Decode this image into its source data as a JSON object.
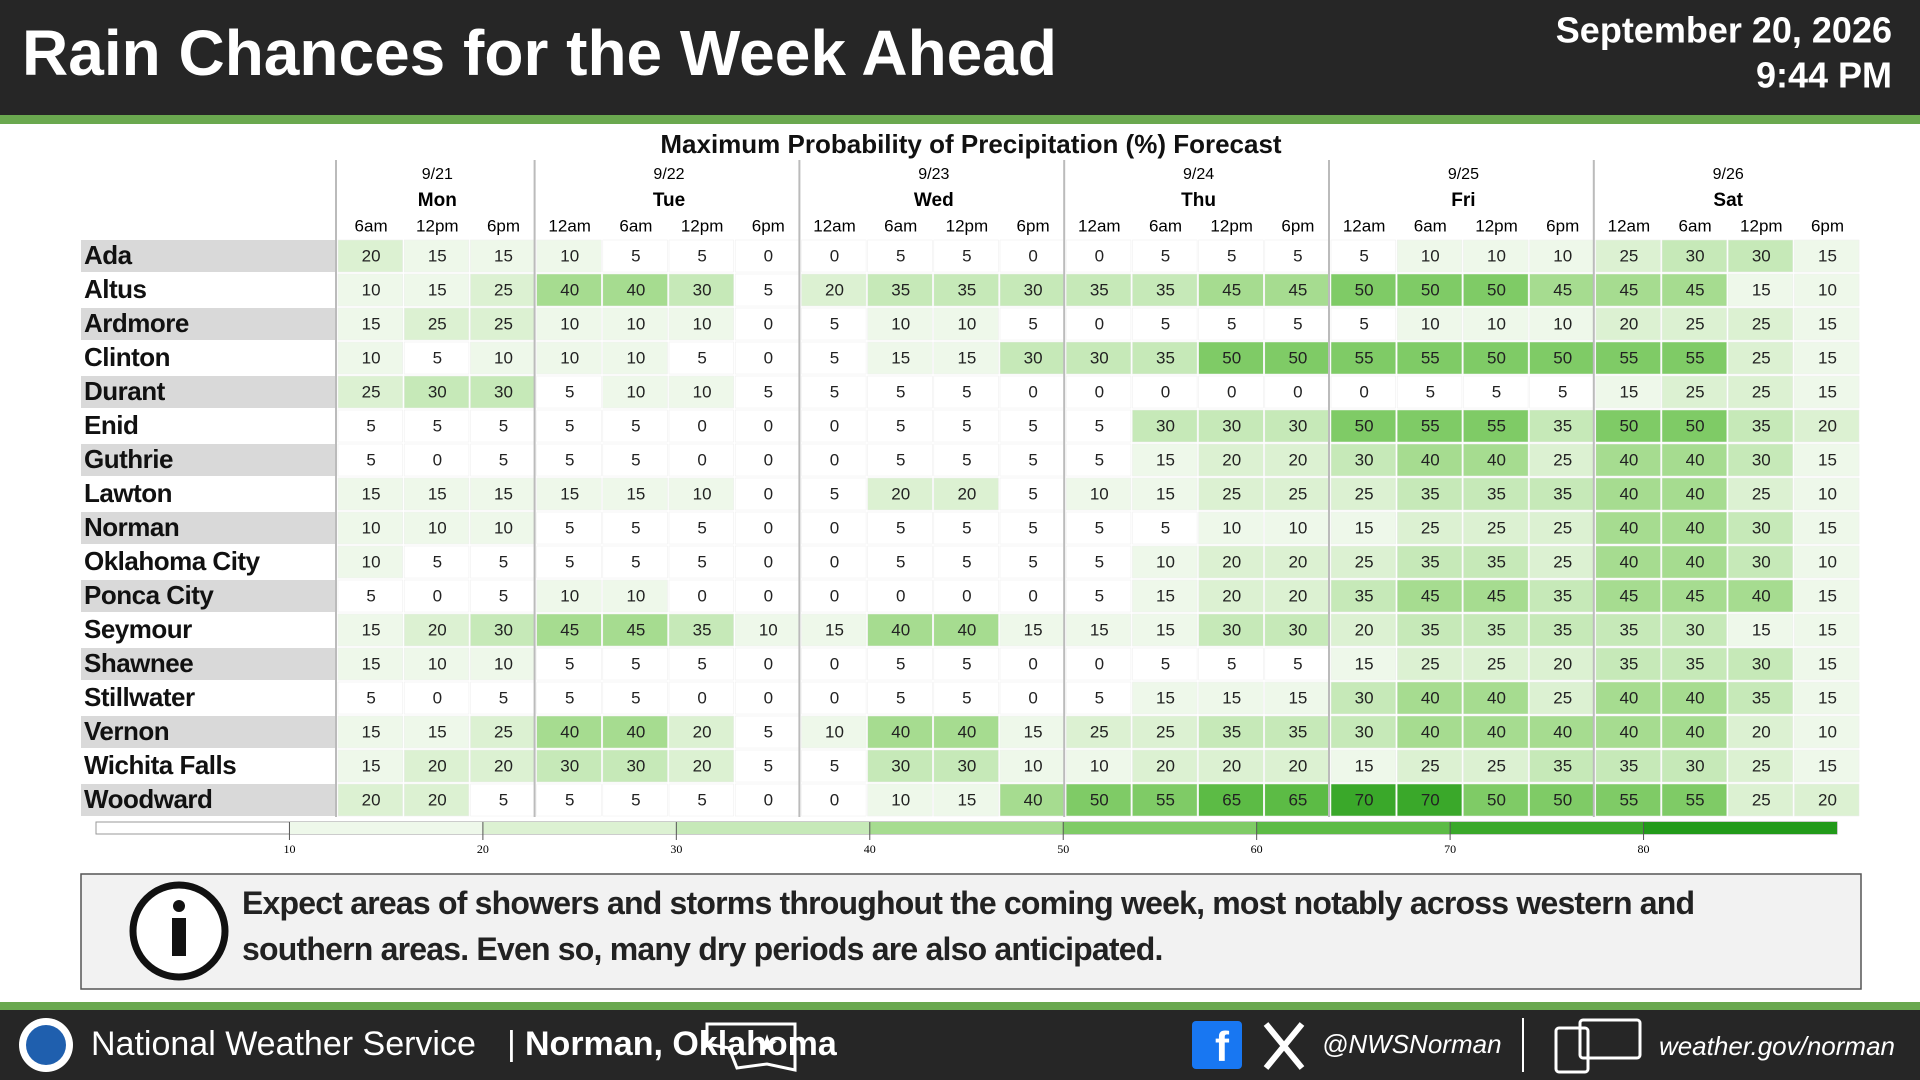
{
  "header": {
    "title": "Rain Chances for the Week Ahead",
    "date": "September 20, 2026",
    "time": "9:44 PM"
  },
  "table": {
    "title": "Maximum Probability of Precipitation (%) Forecast",
    "days": [
      {
        "date": "9/21",
        "weekday": "Mon",
        "times": [
          "6am",
          "12pm",
          "6pm"
        ]
      },
      {
        "date": "9/22",
        "weekday": "Tue",
        "times": [
          "12am",
          "6am",
          "12pm",
          "6pm"
        ]
      },
      {
        "date": "9/23",
        "weekday": "Wed",
        "times": [
          "12am",
          "6am",
          "12pm",
          "6pm"
        ]
      },
      {
        "date": "9/24",
        "weekday": "Thu",
        "times": [
          "12am",
          "6am",
          "12pm",
          "6pm"
        ]
      },
      {
        "date": "9/25",
        "weekday": "Fri",
        "times": [
          "12am",
          "6am",
          "12pm",
          "6pm"
        ]
      },
      {
        "date": "9/26",
        "weekday": "Sat",
        "times": [
          "12am",
          "6am",
          "12pm",
          "6pm"
        ]
      }
    ],
    "rows": [
      {
        "name": "Ada",
        "values": [
          20,
          15,
          15,
          10,
          5,
          5,
          0,
          0,
          5,
          5,
          0,
          0,
          5,
          5,
          5,
          5,
          10,
          10,
          10,
          25,
          30,
          30,
          15
        ]
      },
      {
        "name": "Altus",
        "values": [
          10,
          15,
          25,
          40,
          40,
          30,
          5,
          20,
          35,
          35,
          30,
          35,
          35,
          45,
          45,
          50,
          50,
          50,
          45,
          45,
          45,
          15,
          10
        ]
      },
      {
        "name": "Ardmore",
        "values": [
          15,
          25,
          25,
          10,
          10,
          10,
          0,
          5,
          10,
          10,
          5,
          0,
          5,
          5,
          5,
          5,
          10,
          10,
          10,
          20,
          25,
          25,
          15
        ]
      },
      {
        "name": "Clinton",
        "values": [
          10,
          5,
          10,
          10,
          10,
          5,
          0,
          5,
          15,
          15,
          30,
          30,
          35,
          50,
          50,
          55,
          55,
          50,
          50,
          55,
          55,
          25,
          15
        ]
      },
      {
        "name": "Durant",
        "values": [
          25,
          30,
          30,
          5,
          10,
          10,
          5,
          5,
          5,
          5,
          0,
          0,
          0,
          0,
          0,
          0,
          5,
          5,
          5,
          15,
          25,
          25,
          15
        ]
      },
      {
        "name": "Enid",
        "values": [
          5,
          5,
          5,
          5,
          5,
          0,
          0,
          0,
          5,
          5,
          5,
          5,
          30,
          30,
          30,
          50,
          55,
          55,
          35,
          50,
          50,
          35,
          20
        ]
      },
      {
        "name": "Guthrie",
        "values": [
          5,
          0,
          5,
          5,
          5,
          0,
          0,
          0,
          5,
          5,
          5,
          5,
          15,
          20,
          20,
          30,
          40,
          40,
          25,
          40,
          40,
          30,
          15
        ]
      },
      {
        "name": "Lawton",
        "values": [
          15,
          15,
          15,
          15,
          15,
          10,
          0,
          5,
          20,
          20,
          5,
          10,
          15,
          25,
          25,
          25,
          35,
          35,
          35,
          40,
          40,
          25,
          10
        ]
      },
      {
        "name": "Norman",
        "values": [
          10,
          10,
          10,
          5,
          5,
          5,
          0,
          0,
          5,
          5,
          5,
          5,
          5,
          10,
          10,
          15,
          25,
          25,
          25,
          40,
          40,
          30,
          15
        ]
      },
      {
        "name": "Oklahoma City",
        "values": [
          10,
          5,
          5,
          5,
          5,
          5,
          0,
          0,
          5,
          5,
          5,
          5,
          10,
          20,
          20,
          25,
          35,
          35,
          25,
          40,
          40,
          30,
          10
        ]
      },
      {
        "name": "Ponca City",
        "values": [
          5,
          0,
          5,
          10,
          10,
          0,
          0,
          0,
          0,
          0,
          0,
          5,
          15,
          20,
          20,
          35,
          45,
          45,
          35,
          45,
          45,
          40,
          15
        ]
      },
      {
        "name": "Seymour",
        "values": [
          15,
          20,
          30,
          45,
          45,
          35,
          10,
          15,
          40,
          40,
          15,
          15,
          15,
          30,
          30,
          20,
          35,
          35,
          35,
          35,
          30,
          15,
          15
        ]
      },
      {
        "name": "Shawnee",
        "values": [
          15,
          10,
          10,
          5,
          5,
          5,
          0,
          0,
          5,
          5,
          0,
          0,
          5,
          5,
          5,
          15,
          25,
          25,
          20,
          35,
          35,
          30,
          15
        ]
      },
      {
        "name": "Stillwater",
        "values": [
          5,
          0,
          5,
          5,
          5,
          0,
          0,
          0,
          5,
          5,
          0,
          5,
          15,
          15,
          15,
          30,
          40,
          40,
          25,
          40,
          40,
          35,
          15
        ]
      },
      {
        "name": "Vernon",
        "values": [
          15,
          15,
          25,
          40,
          40,
          20,
          5,
          10,
          40,
          40,
          15,
          25,
          25,
          35,
          35,
          30,
          40,
          40,
          40,
          40,
          40,
          20,
          10
        ]
      },
      {
        "name": "Wichita Falls",
        "values": [
          15,
          20,
          20,
          30,
          30,
          20,
          5,
          5,
          30,
          30,
          10,
          10,
          20,
          20,
          20,
          15,
          25,
          25,
          35,
          35,
          30,
          25,
          15
        ]
      },
      {
        "name": "Woodward",
        "values": [
          20,
          20,
          5,
          5,
          5,
          5,
          0,
          0,
          10,
          15,
          40,
          50,
          55,
          65,
          65,
          70,
          70,
          50,
          50,
          55,
          55,
          25,
          20
        ]
      }
    ],
    "scale": {
      "lim": [
        0,
        90
      ],
      "ticks": [
        10,
        20,
        30,
        40,
        50,
        60,
        70,
        80
      ]
    }
  },
  "info": "Expect areas of showers and storms throughout the coming week, most notably across western and southern areas. Even so, many dry periods are also anticipated.",
  "footer": {
    "office": "National Weather Service",
    "location": "Norman, Oklahoma",
    "handle": "@NWSNorman",
    "website": "weather.gov/norman"
  }
}
